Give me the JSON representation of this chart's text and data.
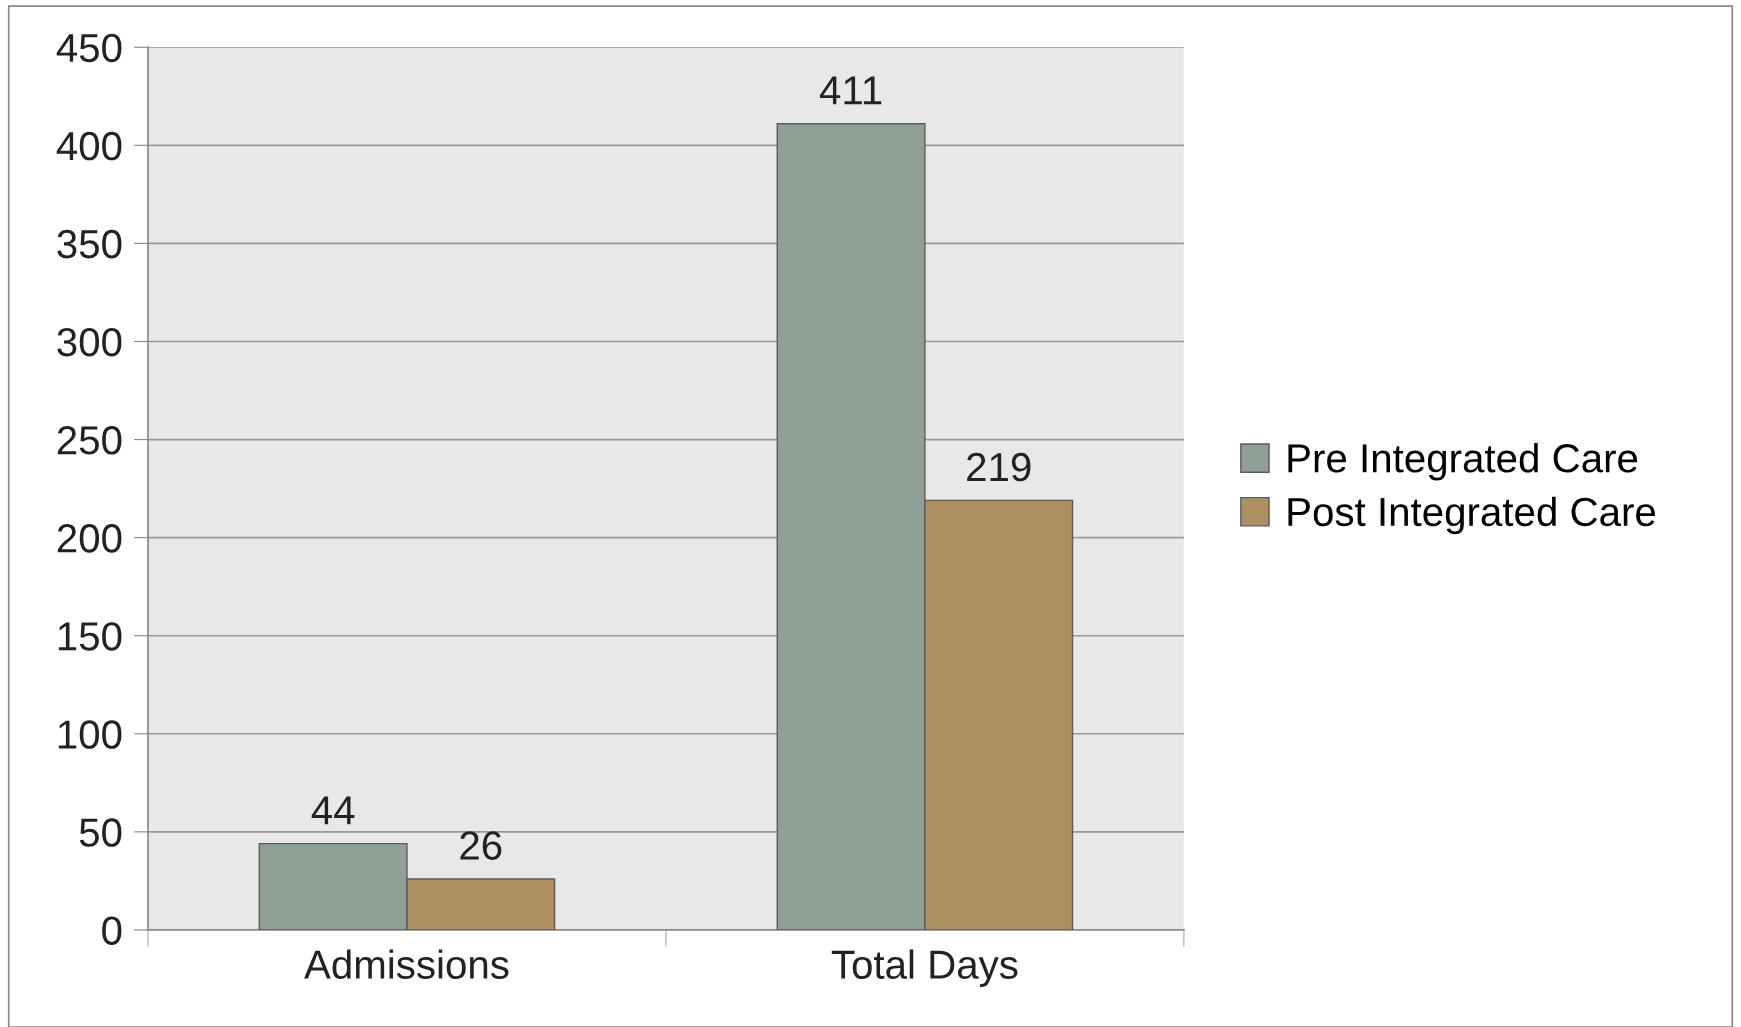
{
  "chart_data": {
    "type": "bar",
    "categories": [
      "Admissions",
      "Total Days"
    ],
    "series": [
      {
        "name": "Pre Integrated Care",
        "color": "#8fa197",
        "values": [
          44,
          411
        ]
      },
      {
        "name": "Post Integrated Care",
        "color": "#ad8f62",
        "values": [
          26,
          219
        ]
      }
    ],
    "ylim": [
      0,
      450
    ],
    "yticks": [
      0,
      50,
      100,
      150,
      200,
      250,
      300,
      350,
      400,
      450
    ],
    "grid": "y",
    "legend": "right",
    "data_labels": true
  }
}
